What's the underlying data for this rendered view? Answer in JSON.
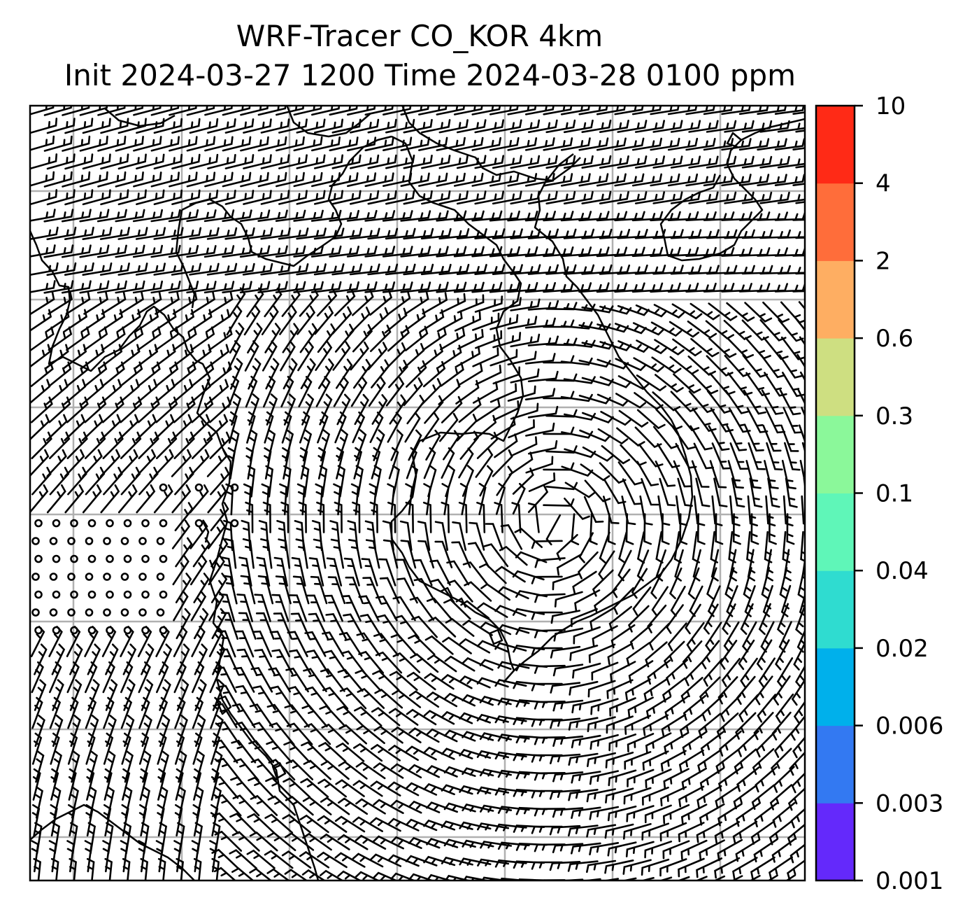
{
  "title": {
    "line1": "WRF-Tracer CO_KOR 4km",
    "line2": "Init 2024-03-27 1200 Time 2024-03-28 0100 ppm"
  },
  "colorbar": {
    "levels": [
      "0.001",
      "0.003",
      "0.006",
      "0.02",
      "0.04",
      "0.1",
      "0.3",
      "0.6",
      "2",
      "4",
      "10"
    ],
    "colors": [
      "#6429fb",
      "#3379f2",
      "#00b0eb",
      "#2fdcd0",
      "#5ff6b8",
      "#8bf89a",
      "#cedf81",
      "#feae62",
      "#ff6d3a",
      "#ff2a16"
    ]
  },
  "map": {
    "field": "wind barbs",
    "gridlines": true,
    "gridline_color": "#b0b0b0",
    "coastline_color": "#000000",
    "background_color": "#ffffff"
  }
}
